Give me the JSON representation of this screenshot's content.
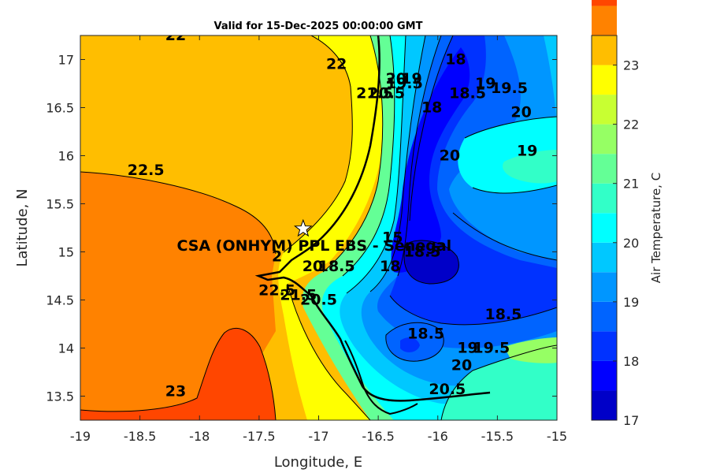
{
  "chart_data": {
    "type": "heatmap",
    "subtype": "filled contour map",
    "title": "Valid for 15-Dec-2025 00:00:00 GMT",
    "xlabel": "Longitude, E",
    "ylabel": "Latitude, N",
    "xlim": [
      -19,
      -15
    ],
    "ylim": [
      13.25,
      17.25
    ],
    "xticks": [
      -19,
      -18.5,
      -18,
      -17.5,
      -17,
      -16.5,
      -16,
      -15.5,
      -15
    ],
    "xtick_labels": [
      "-19",
      "-18.5",
      "-18",
      "-17.5",
      "-17",
      "-16.5",
      "-16",
      "-15.5",
      "-15"
    ],
    "yticks": [
      13.5,
      14,
      14.5,
      15,
      15.5,
      16,
      16.5,
      17
    ],
    "ytick_labels": [
      "13.5",
      "14",
      "14.5",
      "15",
      "15.5",
      "16",
      "16.5",
      "17"
    ],
    "colorbar": {
      "label": "Air Temperature, C",
      "min": 17,
      "max": 23.5,
      "step": 0.5,
      "ticks": [
        17,
        18,
        19,
        20,
        21,
        22,
        23
      ],
      "tick_labels": [
        "17",
        "18",
        "19",
        "20",
        "21",
        "22",
        "23"
      ],
      "colors": [
        "#0000c8",
        "#0000ff",
        "#0032ff",
        "#0064ff",
        "#0096ff",
        "#00c8ff",
        "#00ffff",
        "#32ffc8",
        "#64ff96",
        "#96ff64",
        "#c8ff32",
        "#ffff00",
        "#ffbe00",
        "#ff8200",
        "#ff4600",
        "#ff0000"
      ]
    },
    "contour_labels": [
      {
        "text": "22",
        "lon": -18.2,
        "lat": 17.2
      },
      {
        "text": "22",
        "lon": -16.85,
        "lat": 16.9
      },
      {
        "text": "22.5",
        "lon": -18.45,
        "lat": 15.8
      },
      {
        "text": "23",
        "lon": -18.2,
        "lat": 13.5
      },
      {
        "text": "21.5",
        "lon": -16.53,
        "lat": 16.6
      },
      {
        "text": "20.5",
        "lon": -16.43,
        "lat": 16.6
      },
      {
        "text": "20",
        "lon": -16.35,
        "lat": 16.75
      },
      {
        "text": "19.5",
        "lon": -16.28,
        "lat": 16.7
      },
      {
        "text": "19",
        "lon": -16.22,
        "lat": 16.75
      },
      {
        "text": "18",
        "lon": -15.85,
        "lat": 16.95
      },
      {
        "text": "18.5",
        "lon": -15.75,
        "lat": 16.6
      },
      {
        "text": "19",
        "lon": -15.6,
        "lat": 16.7
      },
      {
        "text": "19.5",
        "lon": -15.4,
        "lat": 16.65
      },
      {
        "text": "18",
        "lon": -16.05,
        "lat": 16.45
      },
      {
        "text": "20",
        "lon": -15.3,
        "lat": 16.4
      },
      {
        "text": "20",
        "lon": -15.9,
        "lat": 15.95
      },
      {
        "text": "19",
        "lon": -15.25,
        "lat": 16.0
      },
      {
        "text": "15",
        "lon": -16.38,
        "lat": 15.1
      },
      {
        "text": "18.5",
        "lon": -16.13,
        "lat": 14.95
      },
      {
        "text": "18.5",
        "lon": -16.85,
        "lat": 14.8
      },
      {
        "text": "18",
        "lon": -16.4,
        "lat": 14.8
      },
      {
        "text": "20",
        "lon": -17.05,
        "lat": 14.8
      },
      {
        "text": "2",
        "lon": -17.35,
        "lat": 14.9
      },
      {
        "text": "22.5",
        "lon": -17.35,
        "lat": 14.55
      },
      {
        "text": "21.5",
        "lon": -17.17,
        "lat": 14.5
      },
      {
        "text": "20.5",
        "lon": -17.0,
        "lat": 14.45
      },
      {
        "text": "18.5",
        "lon": -15.45,
        "lat": 14.3
      },
      {
        "text": "18.5",
        "lon": -16.1,
        "lat": 14.1
      },
      {
        "text": "19",
        "lon": -15.75,
        "lat": 13.95
      },
      {
        "text": "19.5",
        "lon": -15.55,
        "lat": 13.95
      },
      {
        "text": "20",
        "lon": -15.8,
        "lat": 13.77
      },
      {
        "text": "20.5",
        "lon": -15.92,
        "lat": 13.52
      }
    ],
    "annotation": {
      "text": "CSA (ONHYM) PPL EBS  - Senegal",
      "marker": "white-star",
      "lon": -17.13,
      "lat": 15.24
    }
  }
}
